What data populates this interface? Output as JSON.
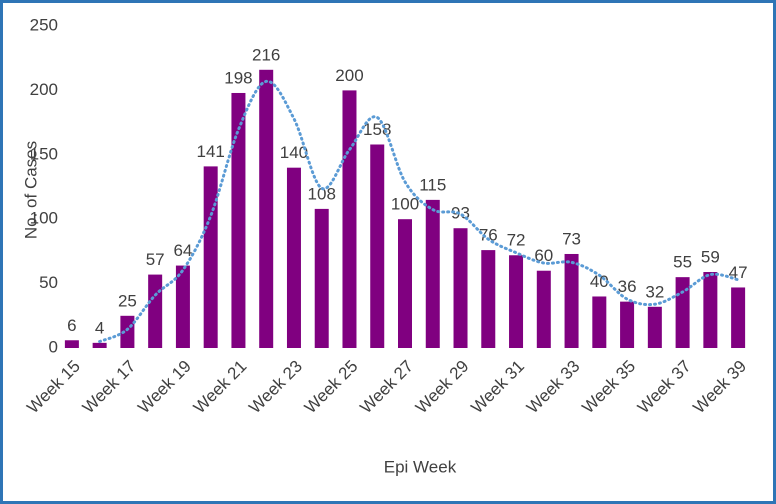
{
  "chart_data": {
    "type": "bar",
    "categories": [
      "Week 15",
      null,
      "Week 17",
      null,
      "Week 19",
      null,
      "Week 21",
      null,
      "Week 23",
      null,
      "Week 25",
      null,
      "Week 27",
      null,
      "Week 29",
      null,
      "Week 31",
      null,
      "Week 33",
      null,
      "Week 35",
      null,
      "Week 37",
      null,
      "Week 39"
    ],
    "values": [
      6,
      4,
      25,
      57,
      64,
      141,
      198,
      216,
      140,
      108,
      200,
      158,
      100,
      115,
      93,
      76,
      72,
      60,
      73,
      40,
      36,
      32,
      55,
      59,
      47
    ],
    "color": "#800080",
    "trendline": {
      "type": "moving_average",
      "color": "#5b9bd5",
      "values": [
        null,
        5,
        14.5,
        41,
        60.5,
        102.5,
        169.5,
        207,
        178,
        124,
        154,
        179,
        129,
        107.5,
        104,
        84.5,
        74,
        66,
        66.5,
        56.5,
        38,
        34,
        43.5,
        57,
        53
      ]
    },
    "xlabel": "Epi Week",
    "ylabel": "No. of Cases",
    "ylim": [
      0,
      250
    ],
    "yticks": [
      0,
      50,
      100,
      150,
      200,
      250
    ],
    "grid": false
  }
}
